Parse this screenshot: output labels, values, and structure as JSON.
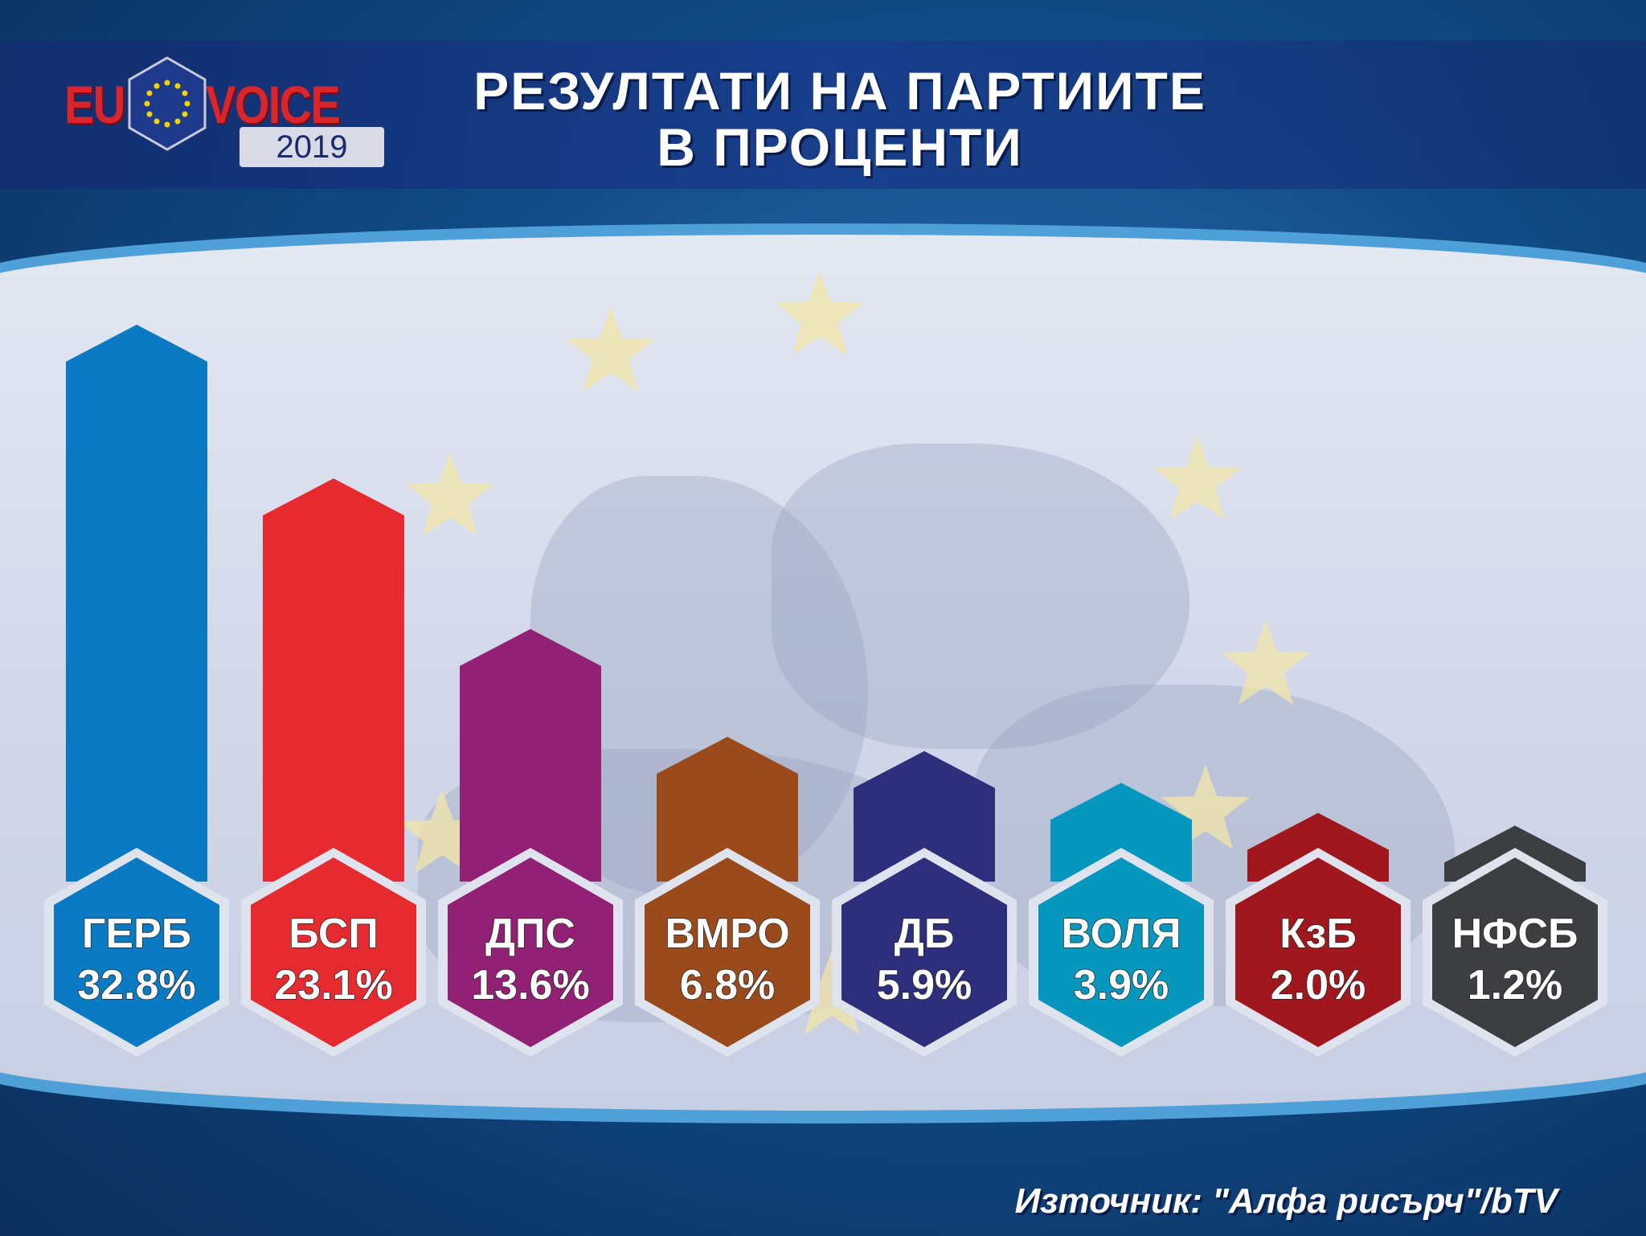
{
  "logo": {
    "left_text": "EU",
    "right_text": "VOICE",
    "year": "2019"
  },
  "header": {
    "title_line1": "РЕЗУЛТАТИ НА ПАРТИИТЕ",
    "title_line2": "В ПРОЦЕНТИ"
  },
  "chart_data": {
    "type": "bar",
    "title": "РЕЗУЛТАТИ НА ПАРТИИТЕ В ПРОЦЕНТИ",
    "categories": [
      "ГЕРБ",
      "БСП",
      "ДПС",
      "ВМРО",
      "ДБ",
      "ВОЛЯ",
      "КзБ",
      "НФСБ"
    ],
    "values": [
      32.8,
      23.1,
      13.6,
      6.8,
      5.9,
      3.9,
      2.0,
      1.2
    ],
    "value_labels": [
      "32.8%",
      "23.1%",
      "13.6%",
      "6.8%",
      "5.9%",
      "3.9%",
      "2.0%",
      "1.2%"
    ],
    "colors": [
      "#0a7ac2",
      "#e52b30",
      "#922175",
      "#9a4a1b",
      "#2d2f7c",
      "#0597be",
      "#a0181d",
      "#3c3e42"
    ],
    "grid": false,
    "legend": "none"
  },
  "footer": {
    "source": "Източник: \"Алфа рисърч\"/bTV"
  }
}
